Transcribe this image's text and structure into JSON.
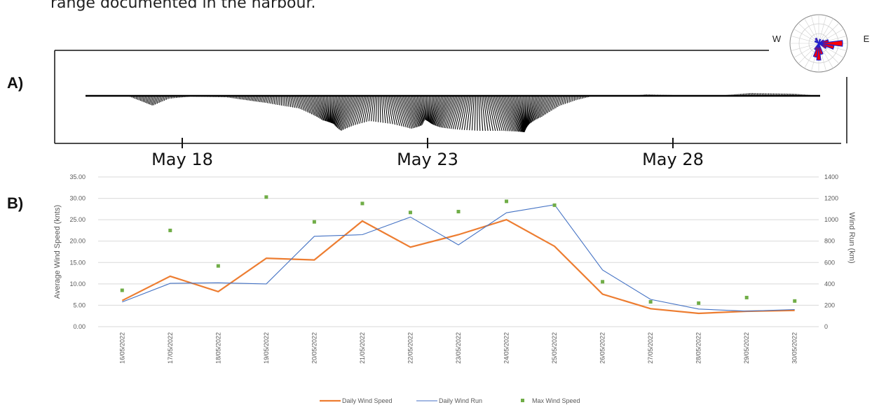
{
  "intro_text": "range documented in the harbour.",
  "panel_a": {
    "label": "A)",
    "date_labels": [
      "May 18",
      "May 23",
      "May 28"
    ],
    "compass": {
      "west": "W",
      "east": "E"
    }
  },
  "panel_b": {
    "label": "B)"
  },
  "colors": {
    "daily_wind_speed": "#ED7D31",
    "daily_wind_run": "#4472C4",
    "max_wind_speed": "#70AD47",
    "rose_fill": "#FF0000",
    "rose_edge": "#2222CC",
    "grid": "#D9D9D9"
  },
  "chart_data": {
    "type": "line",
    "categories": [
      "16/05/2022",
      "17/05/2022",
      "18/05/2022",
      "19/05/2022",
      "20/05/2022",
      "21/05/2022",
      "22/05/2022",
      "23/05/2022",
      "24/05/2022",
      "25/05/2022",
      "26/05/2022",
      "27/05/2022",
      "28/05/2022",
      "29/05/2022",
      "30/05/2022"
    ],
    "ylabel": "Average Wind Speed (knts)",
    "y2label": "Wind Run (km)",
    "ylim": [
      0,
      35
    ],
    "y2lim": [
      0,
      1400
    ],
    "yticks": [
      "0.00",
      "5.00",
      "10.00",
      "15.00",
      "20.00",
      "25.00",
      "30.00",
      "35.00"
    ],
    "y2ticks": [
      "0",
      "200",
      "400",
      "600",
      "800",
      "1000",
      "1200",
      "1400"
    ],
    "grid": true,
    "legend_position": "bottom",
    "series": [
      {
        "name": "Daily Wind Speed",
        "type": "line",
        "axis": "left",
        "values": [
          6.1,
          11.8,
          8.2,
          16.0,
          15.6,
          24.7,
          18.6,
          21.5,
          25.0,
          18.8,
          7.6,
          4.2,
          3.1,
          3.6,
          3.8
        ]
      },
      {
        "name": "Daily Wind Run",
        "type": "line",
        "axis": "right",
        "values": [
          230,
          405,
          410,
          400,
          845,
          860,
          1025,
          765,
          1065,
          1140,
          530,
          255,
          165,
          145,
          160
        ]
      },
      {
        "name": "Max Wind Speed",
        "type": "scatter",
        "axis": "left",
        "values": [
          8.5,
          22.5,
          14.2,
          30.3,
          24.5,
          28.8,
          26.7,
          26.9,
          29.3,
          28.4,
          10.5,
          5.8,
          5.5,
          6.8,
          6.0
        ]
      }
    ]
  }
}
